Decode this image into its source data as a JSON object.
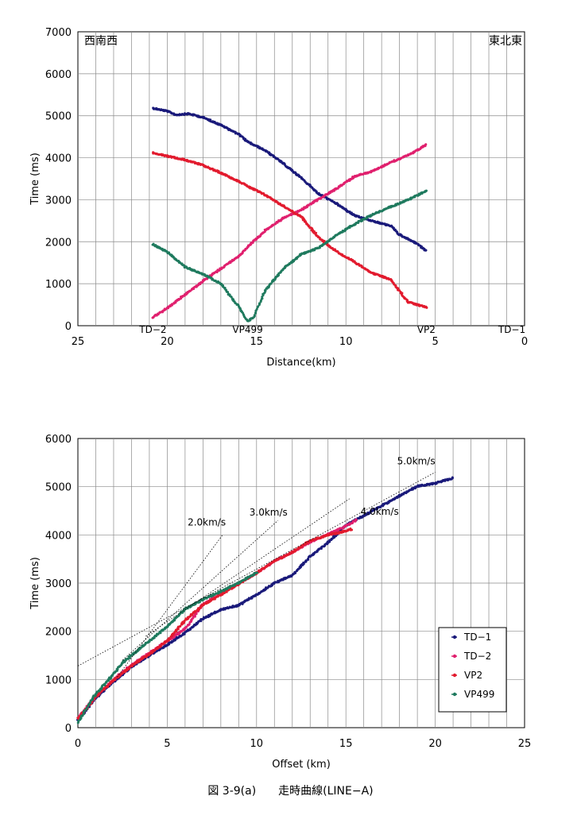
{
  "chart_data": [
    {
      "type": "line",
      "xlabel": "Distance(km)",
      "ylabel": "Time (ms)",
      "xlim": [
        25,
        0
      ],
      "ylim": [
        0,
        7000
      ],
      "x_ticks": [
        25,
        20,
        15,
        10,
        5,
        0
      ],
      "y_ticks": [
        0,
        1000,
        2000,
        3000,
        4000,
        5000,
        6000,
        7000
      ],
      "grid": true,
      "corner_labels": {
        "left": "西南西",
        "right": "東北東"
      },
      "station_markers": [
        {
          "label": "TD−2",
          "x": 20.8
        },
        {
          "label": "VP499",
          "x": 15.5
        },
        {
          "label": "VP2",
          "x": 5.5
        },
        {
          "label": "TD−1",
          "x": 0
        }
      ],
      "series": [
        {
          "color": "#1a1a7a",
          "x": [
            20.8,
            20.0,
            19.5,
            18.8,
            18.0,
            17.0,
            16.0,
            15.5,
            14.5,
            13.5,
            12.5,
            11.5,
            10.5,
            9.5,
            8.5,
            7.5,
            7.0,
            6.0,
            5.5
          ],
          "y": [
            5180,
            5110,
            5020,
            5050,
            4960,
            4780,
            4560,
            4380,
            4170,
            3860,
            3520,
            3130,
            2900,
            2620,
            2490,
            2380,
            2170,
            1950,
            1780
          ]
        },
        {
          "color": "#e0206e",
          "x": [
            20.8,
            20.0,
            19.0,
            18.0,
            17.0,
            16.0,
            15.5,
            14.5,
            13.5,
            12.5,
            11.5,
            10.5,
            9.5,
            8.5,
            7.5,
            6.5,
            5.5
          ],
          "y": [
            200,
            420,
            740,
            1060,
            1360,
            1650,
            1880,
            2270,
            2560,
            2760,
            3020,
            3270,
            3560,
            3680,
            3890,
            4060,
            4310
          ]
        },
        {
          "color": "#e21b2e",
          "x": [
            20.8,
            20.0,
            19.0,
            18.0,
            17.0,
            16.0,
            15.5,
            14.5,
            13.5,
            12.5,
            11.5,
            10.5,
            9.5,
            8.5,
            7.5,
            6.5,
            5.5
          ],
          "y": [
            4120,
            4040,
            3950,
            3820,
            3640,
            3440,
            3320,
            3110,
            2850,
            2590,
            2090,
            1760,
            1510,
            1250,
            1100,
            560,
            440
          ]
        },
        {
          "color": "#1f7a5e",
          "x": [
            20.8,
            20.0,
            19.0,
            18.0,
            17.0,
            16.0,
            15.5,
            15.2,
            14.5,
            13.5,
            12.5,
            11.5,
            10.5,
            9.5,
            8.5,
            7.5,
            6.5,
            5.5
          ],
          "y": [
            1940,
            1760,
            1400,
            1230,
            1000,
            450,
            110,
            180,
            850,
            1360,
            1700,
            1860,
            2160,
            2420,
            2650,
            2830,
            3000,
            3210
          ]
        }
      ]
    },
    {
      "type": "line",
      "xlabel": "Offset (km)",
      "ylabel": "Time (ms)",
      "xlim": [
        0,
        25
      ],
      "ylim": [
        0,
        6000
      ],
      "x_ticks": [
        0,
        5,
        10,
        15,
        20,
        25
      ],
      "y_ticks": [
        0,
        1000,
        2000,
        3000,
        4000,
        5000,
        6000
      ],
      "grid": true,
      "legend_position": "bottom-right",
      "series": [
        {
          "name": "TD−1",
          "color": "#1a1a7a",
          "x": [
            0,
            1,
            2,
            3,
            4,
            5,
            6,
            7,
            8,
            9,
            10,
            11,
            12,
            13,
            14,
            15,
            16,
            17,
            18,
            19,
            20,
            21
          ],
          "y": [
            150,
            620,
            950,
            1260,
            1500,
            1720,
            1970,
            2260,
            2450,
            2540,
            2760,
            3000,
            3160,
            3550,
            3840,
            4200,
            4400,
            4600,
            4810,
            5010,
            5070,
            5180
          ]
        },
        {
          "name": "TD−2",
          "color": "#e0206e",
          "x": [
            0,
            1,
            2,
            3,
            4,
            5,
            6,
            7,
            8,
            9,
            10,
            11,
            12,
            13,
            14,
            15,
            15.6
          ],
          "y": [
            200,
            650,
            1000,
            1300,
            1550,
            1800,
            2050,
            2560,
            2780,
            3000,
            3200,
            3460,
            3640,
            3850,
            4010,
            4180,
            4310
          ]
        },
        {
          "name": "VP2",
          "color": "#e21b2e",
          "x": [
            0,
            1,
            2,
            3,
            4,
            5,
            6,
            7,
            8,
            9,
            10,
            11,
            12,
            13,
            14,
            15,
            15.3
          ],
          "y": [
            180,
            640,
            980,
            1280,
            1530,
            1800,
            2230,
            2540,
            2760,
            2980,
            3210,
            3460,
            3640,
            3880,
            4000,
            4080,
            4120
          ]
        },
        {
          "name": "VP499",
          "color": "#1f7a5e",
          "x": [
            0,
            0.5,
            1,
            1.5,
            2,
            2.5,
            3,
            4,
            5,
            6,
            7,
            8,
            9,
            10
          ],
          "y": [
            110,
            420,
            700,
            900,
            1110,
            1350,
            1500,
            1800,
            2100,
            2460,
            2660,
            2830,
            3000,
            3220
          ]
        }
      ],
      "reference_lines": [
        {
          "label": "2.0km/s",
          "x": [
            2.2,
            8.1
          ],
          "y": [
            1050,
            4000
          ]
        },
        {
          "label": "3.0km/s",
          "x": [
            2.5,
            11.2
          ],
          "y": [
            1400,
            4300
          ]
        },
        {
          "label": "4.0km/s",
          "x": [
            3.8,
            15.2
          ],
          "y": [
            1900,
            4750
          ]
        },
        {
          "label": "5.0km/s",
          "x": [
            0,
            20
          ],
          "y": [
            1280,
            5300
          ]
        }
      ]
    }
  ],
  "caption": "図 3-9(a)　　走時曲線(LINE−A)"
}
